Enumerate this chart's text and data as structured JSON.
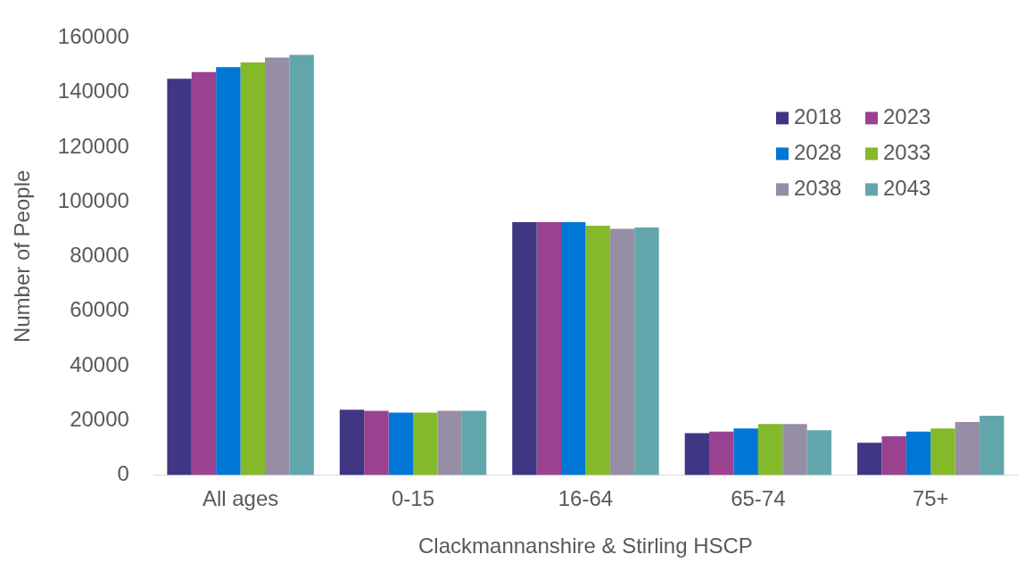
{
  "chart_data": {
    "type": "bar",
    "xlabel": "Clackmannanshire & Stirling HSCP",
    "ylabel": "Number of People",
    "categories": [
      "All ages",
      "0-15",
      "16-64",
      "65-74",
      "75+"
    ],
    "series": [
      {
        "name": "2018",
        "color": "#3f3684",
        "values": [
          145000,
          23900,
          92500,
          15300,
          11800
        ]
      },
      {
        "name": "2023",
        "color": "#9a4290",
        "values": [
          147500,
          23500,
          92500,
          15900,
          14200
        ]
      },
      {
        "name": "2028",
        "color": "#0077d4",
        "values": [
          149300,
          22800,
          92500,
          17000,
          15900
        ]
      },
      {
        "name": "2033",
        "color": "#84b929",
        "values": [
          151000,
          22800,
          91200,
          18700,
          17000
        ]
      },
      {
        "name": "2038",
        "color": "#958ea4",
        "values": [
          152800,
          23500,
          90100,
          18700,
          19400
        ]
      },
      {
        "name": "2043",
        "color": "#62a6ab",
        "values": [
          153800,
          23500,
          90600,
          16400,
          21700
        ]
      }
    ],
    "ylim": [
      0,
      160000
    ],
    "yticks": [
      0,
      20000,
      40000,
      60000,
      80000,
      100000,
      120000,
      140000,
      160000
    ],
    "grid": false,
    "legend": "top right"
  }
}
